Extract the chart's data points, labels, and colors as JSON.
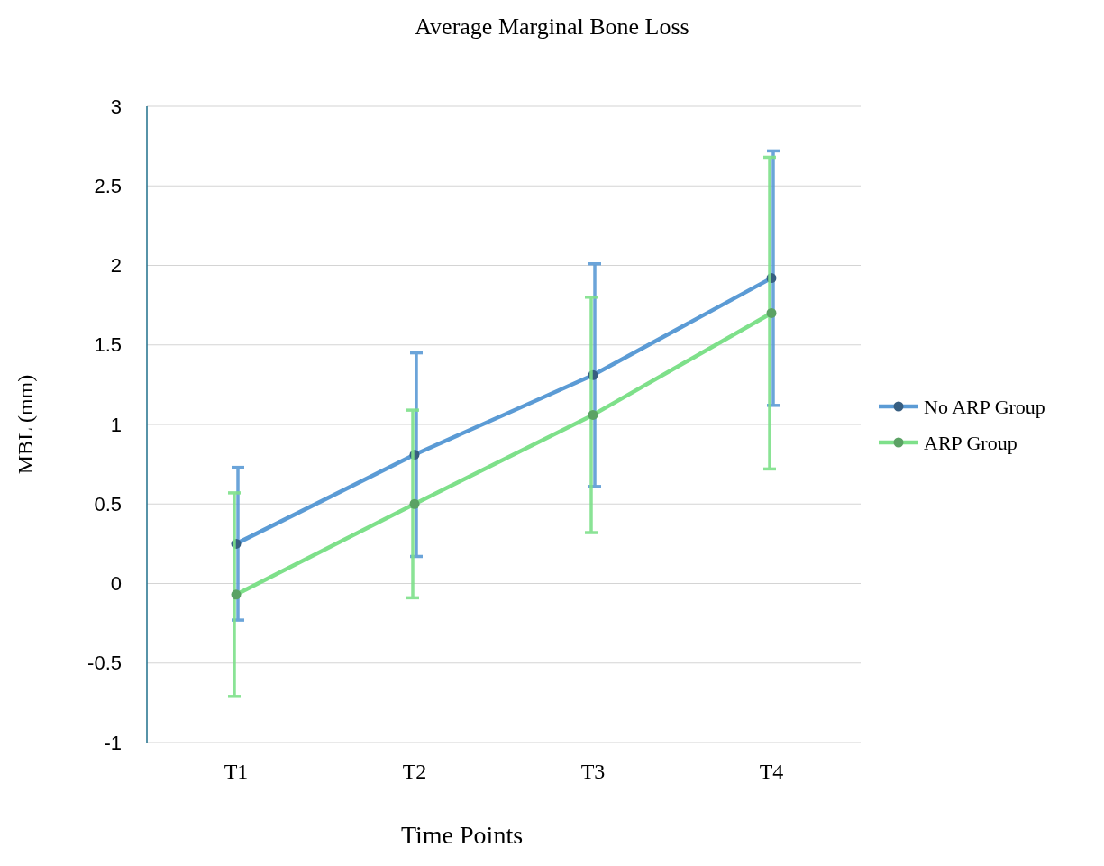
{
  "chart_data": {
    "type": "line",
    "title": "Average Marginal Bone Loss",
    "xlabel": "Time Points",
    "ylabel": "MBL (mm)",
    "categories": [
      "T1",
      "T2",
      "T3",
      "T4"
    ],
    "series": [
      {
        "name": "No ARP Group",
        "color": "#5b9bd5",
        "values": [
          0.25,
          0.81,
          1.31,
          1.92
        ],
        "errors": [
          0.48,
          0.64,
          0.7,
          0.8
        ]
      },
      {
        "name": "ARP Group",
        "color": "#7ee08a",
        "values": [
          -0.07,
          0.5,
          1.06,
          1.7
        ],
        "errors": [
          0.64,
          0.59,
          0.74,
          0.98
        ]
      }
    ],
    "ylim": [
      -1,
      3
    ],
    "yticks": [
      -1,
      -0.5,
      0,
      0.5,
      1,
      1.5,
      2,
      2.5,
      3
    ],
    "grid": "y",
    "legend": "right",
    "marker": "circle",
    "line_style": "solid"
  }
}
